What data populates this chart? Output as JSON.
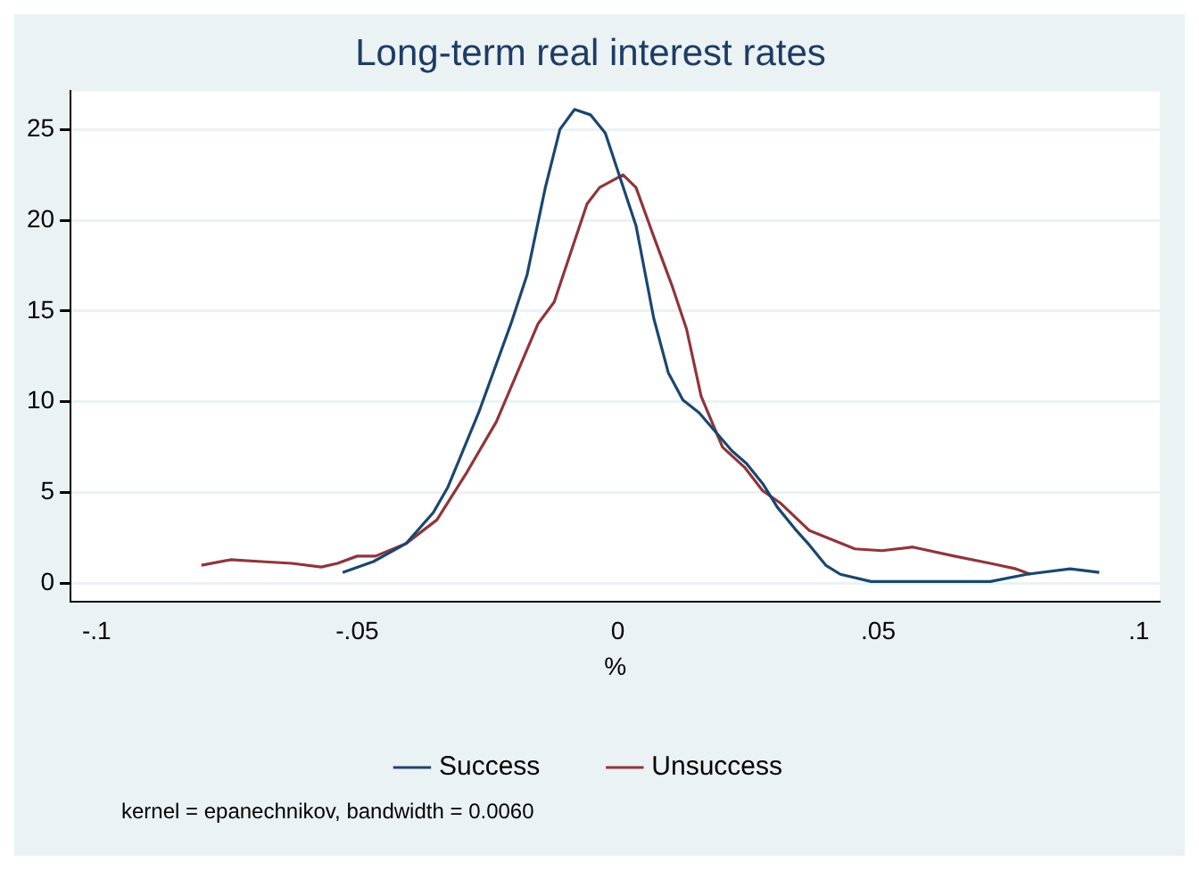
{
  "chart_data": {
    "type": "line",
    "title": "Long-term real interest rates",
    "xlabel": "%",
    "xlim": [
      -0.105,
      0.104
    ],
    "xticks": [
      {
        "value": -0.1,
        "label": "-.1"
      },
      {
        "value": -0.05,
        "label": "-.05"
      },
      0,
      {
        "value": 0.05,
        "label": ".05"
      },
      {
        "value": 0.1,
        "label": ".1"
      }
    ],
    "ylim": [
      -1,
      27.1
    ],
    "yticks": [
      0,
      5,
      10,
      15,
      20,
      25
    ],
    "grid": "y",
    "legend": "bottom",
    "marker": "none",
    "line_style": "solid",
    "annotations": [
      "kernel = epanechnikov, bandwidth = 0.0060"
    ],
    "series": [
      {
        "name": "Success",
        "color": "#1a476f",
        "x": [
          -0.0528,
          -0.0469,
          -0.0406,
          -0.0354,
          -0.0326,
          -0.0267,
          -0.0205,
          -0.0174,
          -0.0139,
          -0.0111,
          -0.0083,
          -0.0052,
          -0.0024,
          0.0035,
          0.0069,
          0.0097,
          0.0125,
          0.0156,
          0.0219,
          0.0247,
          0.0278,
          0.0306,
          0.034,
          0.0368,
          0.0399,
          0.0427,
          0.0486,
          0.0715,
          0.0785,
          0.0868,
          0.0924
        ],
        "values": [
          0.6,
          1.2,
          2.2,
          3.9,
          5.3,
          9.4,
          14.3,
          17,
          21.8,
          25,
          26.1,
          25.8,
          24.8,
          19.7,
          14.6,
          11.6,
          10.1,
          9.4,
          7.3,
          6.6,
          5.5,
          4.2,
          3,
          2.1,
          1,
          0.5,
          0.1,
          0.1,
          0.5,
          0.8,
          0.6
        ]
      },
      {
        "name": "Unsuccess",
        "color": "#90353b",
        "x": [
          -0.0799,
          -0.0743,
          -0.0684,
          -0.0625,
          -0.0569,
          -0.0538,
          -0.05,
          -0.0465,
          -0.0406,
          -0.0347,
          -0.0292,
          -0.0233,
          -0.0153,
          -0.0122,
          -0.0087,
          -0.0059,
          -0.0035,
          0.001,
          0.0035,
          0.0069,
          0.0104,
          0.0132,
          0.016,
          0.0201,
          0.0243,
          0.0278,
          0.0313,
          0.0368,
          0.0455,
          0.0507,
          0.0566,
          0.0646,
          0.0715,
          0.0764,
          0.0792
        ],
        "values": [
          1,
          1.3,
          1.2,
          1.1,
          0.9,
          1.1,
          1.5,
          1.5,
          2.2,
          3.5,
          6,
          8.9,
          14.3,
          15.5,
          18.5,
          20.9,
          21.8,
          22.5,
          21.8,
          19.1,
          16.4,
          14,
          10.3,
          7.5,
          6.4,
          5.1,
          4.4,
          2.9,
          1.9,
          1.8,
          2,
          1.5,
          1.1,
          0.8,
          0.5
        ]
      }
    ]
  }
}
